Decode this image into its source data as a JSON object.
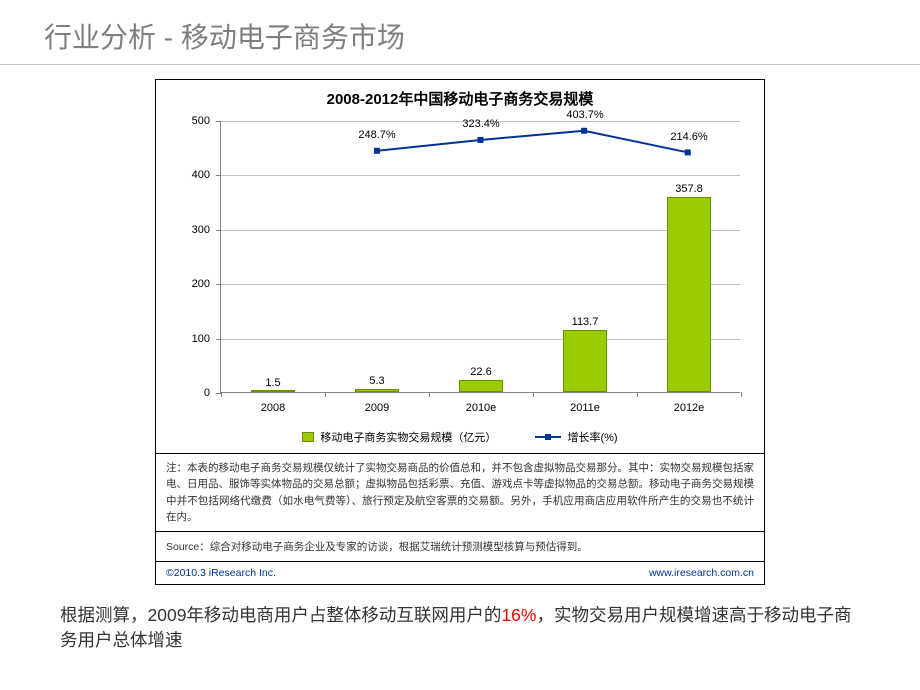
{
  "slide": {
    "title": "行业分析 - 移动电子商务市场"
  },
  "chart": {
    "type": "bar+line",
    "title": "2008-2012年中国移动电子商务交易规模",
    "categories": [
      "2008",
      "2009",
      "2010e",
      "2011e",
      "2012e"
    ],
    "bars": {
      "values": [
        1.5,
        5.3,
        22.6,
        113.7,
        357.8
      ],
      "labels": [
        "1.5",
        "5.3",
        "22.6",
        "113.7",
        "357.8"
      ],
      "color": "#99cc00",
      "border_color": "#6d9000",
      "bar_width_frac": 0.42
    },
    "line": {
      "values": [
        null,
        248.7,
        323.4,
        403.7,
        214.6
      ],
      "labels": [
        null,
        "248.7%",
        "323.4%",
        "403.7%",
        "214.6%"
      ],
      "y_plot": [
        null,
        445,
        465,
        482,
        442
      ],
      "color": "#003399",
      "marker": "square",
      "marker_size": 6,
      "line_width": 2
    },
    "y_axis": {
      "min": 0,
      "max": 500,
      "tick_step": 100,
      "ticks": [
        0,
        100,
        200,
        300,
        400,
        500
      ]
    },
    "grid_color": "#bfbfbf",
    "axis_color": "#808080",
    "background": "#ffffff",
    "legend": {
      "bar_label": "移动电子商务实物交易规模（亿元）",
      "line_label": "增长率(%)"
    },
    "note": "注：本表的移动电子商务交易规模仅统计了实物交易商品的价值总和，并不包含虚拟物品交易那分。其中：实物交易规模包括家电、日用品、服饰等实体物品的交易总额；虚拟物品包括彩票、充值、游戏点卡等虚拟物品的交易总额。移动电子商务交易规模中并不包括网络代缴费（如水电气费等）、旅行预定及航空客票的交易额。另外，手机应用商店应用软件所产生的交易也不统计在内。",
    "source": "Source：综合对移动电子商务企业及专家的访谈，根据艾瑞统计预测模型核算与预估得到。",
    "copyright_left": "©2010.3 iResearch Inc.",
    "copyright_right": "www.iresearch.com.cn"
  },
  "body": {
    "pre": "根据测算，2009年移动电商用户占整体移动互联网用户的",
    "highlight": "16%",
    "post": "，实物交易用户规模增速高于移动电子商务用户总体增速"
  }
}
